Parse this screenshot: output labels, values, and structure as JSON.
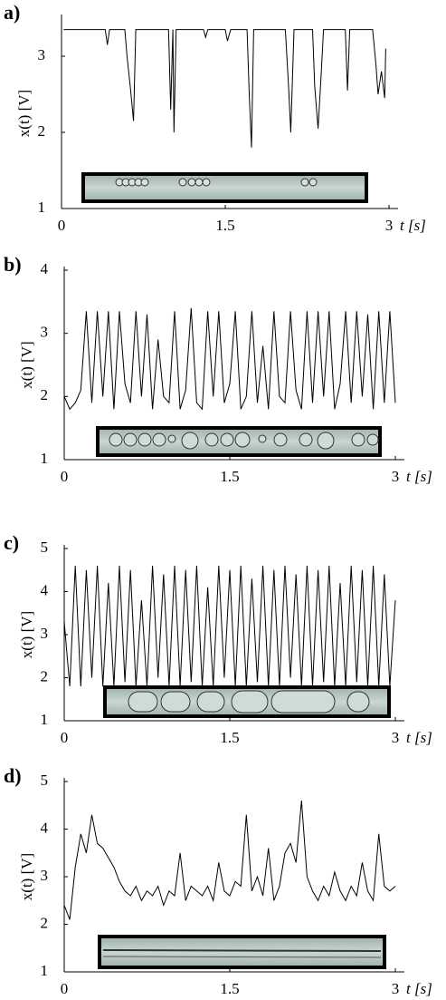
{
  "chart_data": [
    {
      "type": "line",
      "panel_label": "a)",
      "xlabel": "t [s]",
      "ylabel": "x(t) [V]",
      "x": [
        0.02,
        0.4,
        0.42,
        0.44,
        0.58,
        0.6,
        0.63,
        0.66,
        0.68,
        0.98,
        1.0,
        1.02,
        1.03,
        1.05,
        1.3,
        1.32,
        1.34,
        1.5,
        1.52,
        1.55,
        1.7,
        1.72,
        1.74,
        1.76,
        2.05,
        2.08,
        2.1,
        2.13,
        2.3,
        2.32,
        2.35,
        2.38,
        2.4,
        2.6,
        2.62,
        2.64,
        2.85,
        2.88,
        2.9,
        2.93,
        2.96,
        2.97
      ],
      "values": [
        3.35,
        3.35,
        3.15,
        3.35,
        3.35,
        3.0,
        2.6,
        2.15,
        3.35,
        3.35,
        2.3,
        3.35,
        2.0,
        3.35,
        3.35,
        3.25,
        3.35,
        3.35,
        3.2,
        3.35,
        3.35,
        2.5,
        1.8,
        3.35,
        3.35,
        2.6,
        2.0,
        3.35,
        3.35,
        2.6,
        2.05,
        2.8,
        3.35,
        3.35,
        2.55,
        3.35,
        3.35,
        2.9,
        2.5,
        2.8,
        2.45,
        3.1
      ],
      "color": "#000000",
      "xlim": [
        0,
        3
      ],
      "ylim": [
        1,
        3.5
      ],
      "xticks": [
        0,
        1.5,
        3
      ],
      "yticks": [
        1,
        2,
        3
      ]
    },
    {
      "type": "line",
      "panel_label": "b)",
      "xlabel": "t [s]",
      "ylabel": "x(t) [V]",
      "x": [
        0,
        0.05,
        0.1,
        0.15,
        0.2,
        0.25,
        0.3,
        0.35,
        0.4,
        0.45,
        0.5,
        0.55,
        0.6,
        0.65,
        0.7,
        0.75,
        0.8,
        0.85,
        0.9,
        0.95,
        1.0,
        1.05,
        1.1,
        1.15,
        1.2,
        1.25,
        1.3,
        1.35,
        1.4,
        1.45,
        1.5,
        1.55,
        1.6,
        1.65,
        1.7,
        1.75,
        1.8,
        1.85,
        1.9,
        1.95,
        2.0,
        2.05,
        2.1,
        2.15,
        2.2,
        2.25,
        2.3,
        2.35,
        2.4,
        2.45,
        2.5,
        2.55,
        2.6,
        2.65,
        2.7,
        2.75,
        2.8,
        2.85,
        2.9,
        2.95,
        3.0
      ],
      "values": [
        2.0,
        1.8,
        1.9,
        2.1,
        3.35,
        1.9,
        3.35,
        2.0,
        3.35,
        1.8,
        3.35,
        2.2,
        1.9,
        3.35,
        2.0,
        3.3,
        1.8,
        2.9,
        2.0,
        1.9,
        3.35,
        1.8,
        2.1,
        3.4,
        1.9,
        1.8,
        3.35,
        2.0,
        3.35,
        1.9,
        2.2,
        3.35,
        1.8,
        2.0,
        3.35,
        1.9,
        2.8,
        1.8,
        3.35,
        2.0,
        1.9,
        3.35,
        2.1,
        1.8,
        3.35,
        1.9,
        3.35,
        2.0,
        3.35,
        1.8,
        2.2,
        3.35,
        1.9,
        3.35,
        2.0,
        3.3,
        1.8,
        3.35,
        1.9,
        3.35,
        1.9
      ],
      "color": "#000000",
      "xlim": [
        0,
        3
      ],
      "ylim": [
        1,
        4
      ],
      "xticks": [
        0,
        1.5,
        3
      ],
      "yticks": [
        1,
        2,
        3,
        4
      ]
    },
    {
      "type": "line",
      "panel_label": "c)",
      "xlabel": "t [s]",
      "ylabel": "x(t) [V]",
      "x": [
        0,
        0.05,
        0.1,
        0.15,
        0.2,
        0.25,
        0.3,
        0.35,
        0.4,
        0.45,
        0.5,
        0.55,
        0.6,
        0.65,
        0.7,
        0.75,
        0.8,
        0.85,
        0.9,
        0.95,
        1.0,
        1.05,
        1.1,
        1.15,
        1.2,
        1.25,
        1.3,
        1.35,
        1.4,
        1.45,
        1.5,
        1.55,
        1.6,
        1.65,
        1.7,
        1.75,
        1.8,
        1.85,
        1.9,
        1.95,
        2.0,
        2.05,
        2.1,
        2.15,
        2.2,
        2.25,
        2.3,
        2.35,
        2.4,
        2.45,
        2.5,
        2.55,
        2.6,
        2.65,
        2.7,
        2.75,
        2.8,
        2.85,
        2.9,
        2.95,
        3.0
      ],
      "values": [
        3.3,
        1.8,
        4.6,
        1.8,
        4.5,
        2.0,
        4.6,
        1.8,
        4.2,
        1.8,
        4.6,
        1.9,
        4.5,
        1.8,
        3.8,
        1.8,
        4.6,
        2.0,
        4.4,
        1.8,
        4.6,
        1.8,
        4.5,
        1.9,
        4.6,
        1.8,
        4.1,
        1.8,
        4.6,
        2.0,
        4.5,
        1.8,
        4.6,
        1.8,
        4.3,
        1.9,
        4.6,
        1.8,
        4.5,
        1.8,
        4.6,
        2.0,
        4.4,
        1.8,
        4.6,
        1.8,
        4.5,
        1.9,
        4.6,
        1.8,
        4.2,
        1.8,
        4.6,
        1.9,
        4.5,
        1.8,
        4.6,
        1.8,
        4.4,
        1.8,
        3.8
      ],
      "color": "#000000",
      "xlim": [
        0,
        3
      ],
      "ylim": [
        1,
        5
      ],
      "xticks": [
        0,
        1.5,
        3
      ],
      "yticks": [
        1,
        2,
        3,
        4,
        5
      ]
    },
    {
      "type": "line",
      "panel_label": "d)",
      "xlabel": "t [s]",
      "ylabel": "x(t) [V]",
      "x": [
        0,
        0.05,
        0.1,
        0.15,
        0.2,
        0.25,
        0.3,
        0.35,
        0.4,
        0.45,
        0.5,
        0.55,
        0.6,
        0.65,
        0.7,
        0.75,
        0.8,
        0.85,
        0.9,
        0.95,
        1.0,
        1.05,
        1.1,
        1.15,
        1.2,
        1.25,
        1.3,
        1.35,
        1.4,
        1.45,
        1.5,
        1.55,
        1.6,
        1.65,
        1.7,
        1.75,
        1.8,
        1.85,
        1.9,
        1.95,
        2.0,
        2.05,
        2.1,
        2.15,
        2.2,
        2.25,
        2.3,
        2.35,
        2.4,
        2.45,
        2.5,
        2.55,
        2.6,
        2.65,
        2.7,
        2.75,
        2.8,
        2.85,
        2.9,
        2.95,
        3.0
      ],
      "values": [
        2.4,
        2.1,
        3.2,
        3.9,
        3.5,
        4.3,
        3.7,
        3.6,
        3.4,
        3.2,
        2.9,
        2.7,
        2.6,
        2.8,
        2.5,
        2.7,
        2.6,
        2.8,
        2.4,
        2.7,
        2.6,
        3.5,
        2.5,
        2.8,
        2.7,
        2.6,
        2.8,
        2.5,
        3.3,
        2.7,
        2.6,
        2.9,
        2.8,
        4.3,
        2.7,
        3.0,
        2.6,
        3.6,
        2.5,
        2.8,
        3.5,
        3.7,
        3.3,
        4.6,
        3.0,
        2.7,
        2.5,
        2.8,
        2.6,
        3.1,
        2.7,
        2.5,
        2.8,
        2.6,
        3.3,
        2.7,
        2.5,
        3.9,
        2.8,
        2.7,
        2.8
      ],
      "color": "#000000",
      "xlim": [
        0,
        3
      ],
      "ylim": [
        1,
        5
      ],
      "xticks": [
        0,
        1.5,
        3
      ],
      "yticks": [
        1,
        2,
        3,
        4,
        5
      ]
    }
  ]
}
